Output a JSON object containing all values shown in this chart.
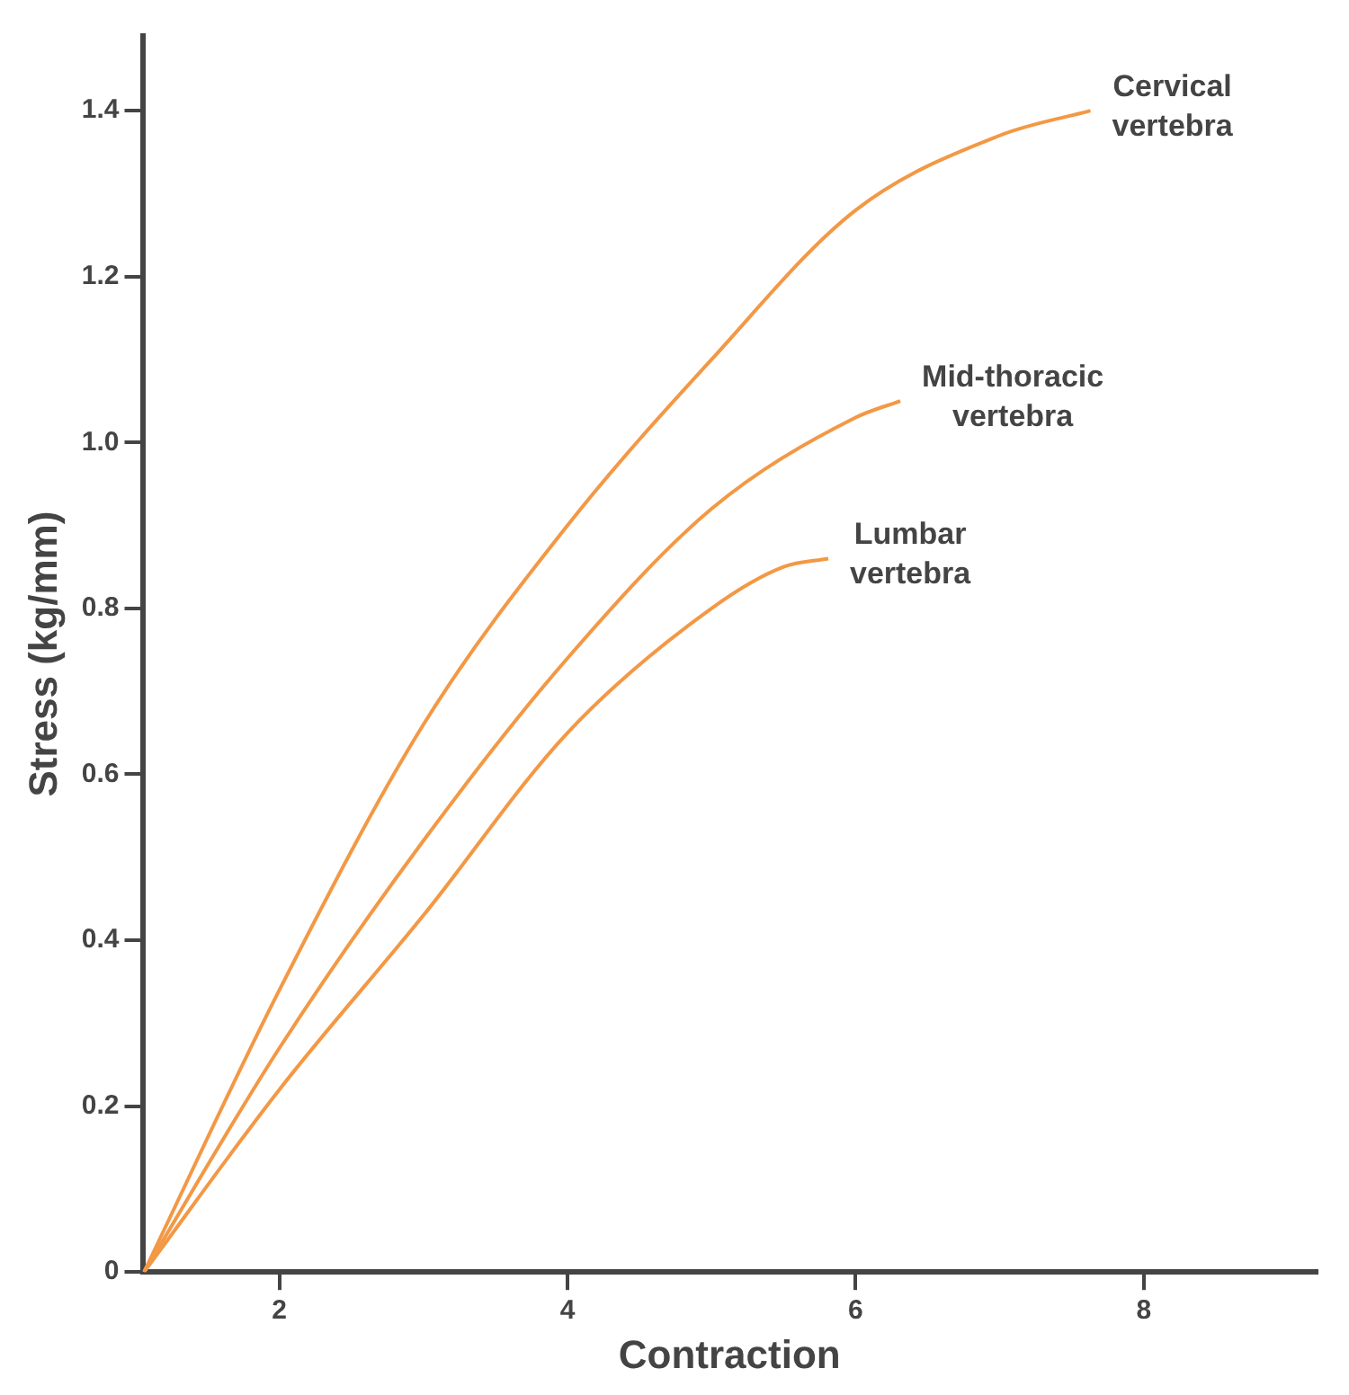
{
  "chart_data": {
    "type": "line",
    "xlabel": "Contraction",
    "ylabel": "Stress (kg/mm)",
    "xlim": [
      1.05,
      9.2
    ],
    "xticks": [
      2,
      4,
      6,
      8
    ],
    "ylim": [
      0,
      1.49
    ],
    "yticks": [
      0,
      0.2,
      0.4,
      0.6,
      0.8,
      {
        "value": 1,
        "label": "1.0"
      },
      1.2,
      1.4
    ],
    "grid": false,
    "legend": false,
    "marker": "none",
    "line_style": "solid",
    "series": [
      {
        "name": "Cervical vertebra",
        "color": "#f39845",
        "x": [
          1.06,
          2,
          3,
          4,
          5,
          6,
          7,
          7.63
        ],
        "values": [
          0,
          0.34,
          0.66,
          0.9,
          1.1,
          1.28,
          1.37,
          1.4
        ]
      },
      {
        "name": "Mid-thoracic vertebra",
        "color": "#f39845",
        "x": [
          1.06,
          2,
          3,
          4,
          5,
          6,
          6.31
        ],
        "values": [
          0,
          0.27,
          0.52,
          0.74,
          0.92,
          1.03,
          1.05
        ]
      },
      {
        "name": "Lumbar vertebra",
        "color": "#f39845",
        "x": [
          1.06,
          2,
          3,
          4,
          5,
          5.5,
          5.81
        ],
        "values": [
          0,
          0.22,
          0.43,
          0.65,
          0.8,
          0.85,
          0.86
        ]
      }
    ]
  }
}
